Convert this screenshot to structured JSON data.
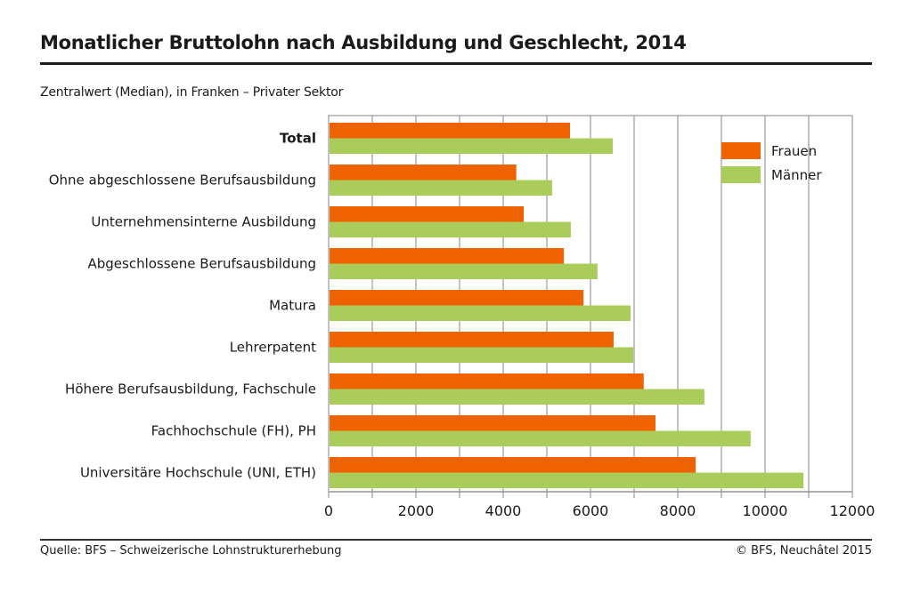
{
  "header": {
    "title": "Monatlicher Bruttolohn nach Ausbildung und Geschlecht, 2014",
    "subtitle": "Zentralwert (Median), in Franken – Privater Sektor"
  },
  "footer": {
    "source": "Quelle: BFS – Schweizerische Lohnstrukturerhebung",
    "copyright": "© BFS, Neuchâtel 2015"
  },
  "chart_data": {
    "type": "bar",
    "orientation": "horizontal",
    "title": "Monatlicher Bruttolohn nach Ausbildung und Geschlecht, 2014",
    "subtitle": "Zentralwert (Median), in Franken – Privater Sektor",
    "xlabel": "",
    "ylabel": "",
    "xlim": [
      0,
      12000
    ],
    "xticks": [
      0,
      2000,
      4000,
      6000,
      8000,
      10000,
      12000
    ],
    "tick_labels": [
      "0",
      "2000",
      "4000",
      "6000",
      "8000",
      "10000",
      "12000"
    ],
    "grid": "vertical, every 1000",
    "legend_position": "top-right",
    "categories": [
      "Total",
      "Ohne abgeschlossene Berufsausbildung",
      "Unternehmensinterne Ausbildung",
      "Abgeschlossene Berufsausbildung",
      "Matura",
      "Lehrerpatent",
      "Höhere Berufsausbildung, Fachschule",
      "Fachhochschule (FH), PH",
      "Universitäre Hochschule (UNI, ETH)"
    ],
    "bold_categories": [
      "Total"
    ],
    "series": [
      {
        "name": "Frauen",
        "color": "#EE6300",
        "values": [
          5530,
          4300,
          4470,
          5390,
          5840,
          6530,
          7220,
          7490,
          8410
        ]
      },
      {
        "name": "Männer",
        "color": "#AACC5A",
        "values": [
          6510,
          5120,
          5550,
          6160,
          6920,
          6980,
          8610,
          9670,
          10880
        ]
      }
    ]
  }
}
